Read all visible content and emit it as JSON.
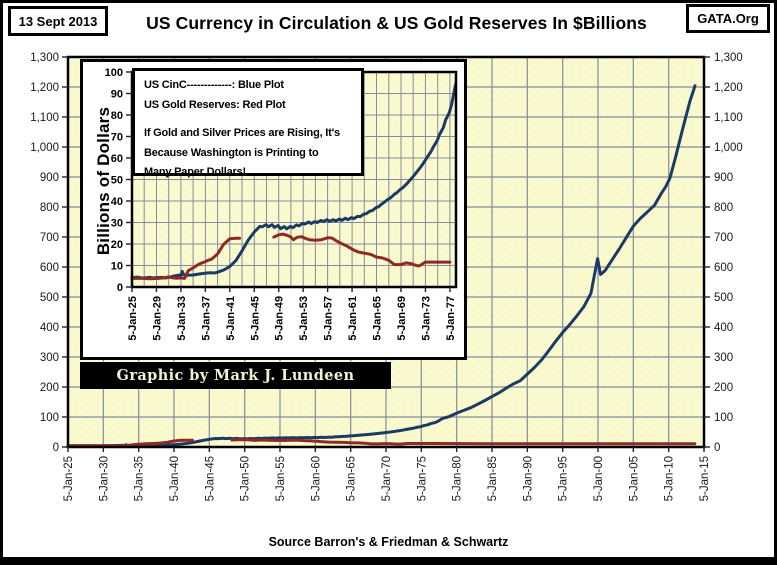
{
  "header": {
    "date": "13 Sept 2013",
    "brand": "GATA.Org",
    "title": "US Currency in Circulation & US Gold Reserves In $Billions"
  },
  "credit": {
    "text": "Graphic by Mark J. Lundeen"
  },
  "footer": {
    "source": "Source Barron's & Friedman & Schwartz"
  },
  "chart_data": {
    "type": "line",
    "title": "US Currency in Circulation & US Gold Reserves In $Billions",
    "xlabel": "",
    "ylabel": "Billions of Dollars",
    "legend": {
      "position": "inset-top-left",
      "lines": [
        "US CinC-------------: Blue Plot",
        "US Gold Reserves: Red Plot",
        "If Gold and Silver Prices are Rising, It's",
        "Because Washington is Printing to",
        "Many Paper Dollars!"
      ]
    },
    "colors": {
      "cinc": "#1B3A64",
      "gold": "#8E2A24",
      "plot_bg": "#FAF9CB",
      "grid": "#848C9E"
    },
    "series": [
      {
        "name": "US CinC",
        "color_key": "cinc",
        "points": [
          [
            1925,
            4.3
          ],
          [
            1925.9,
            4.6
          ],
          [
            1926.5,
            4.25
          ],
          [
            1927,
            4.2
          ],
          [
            1927.9,
            4.5
          ],
          [
            1928.5,
            4.2
          ],
          [
            1929,
            4.35
          ],
          [
            1929.9,
            4.45
          ],
          [
            1930.5,
            4.2
          ],
          [
            1931,
            4.5
          ],
          [
            1931.9,
            5.1
          ],
          [
            1932.5,
            5.45
          ],
          [
            1933.05,
            5.6
          ],
          [
            1933.2,
            7.3
          ],
          [
            1933.45,
            5.7
          ],
          [
            1934,
            5.45
          ],
          [
            1935,
            5.6
          ],
          [
            1936,
            6.05
          ],
          [
            1937,
            6.45
          ],
          [
            1937.9,
            6.6
          ],
          [
            1938.5,
            6.5
          ],
          [
            1939,
            6.9
          ],
          [
            1940,
            7.9
          ],
          [
            1941,
            9.6
          ],
          [
            1942,
            12.3
          ],
          [
            1943,
            16.8
          ],
          [
            1944,
            21.8
          ],
          [
            1945,
            25.6
          ],
          [
            1945.9,
            28.2
          ],
          [
            1946.3,
            28.0
          ],
          [
            1946.92,
            29.0
          ],
          [
            1947.3,
            28.0
          ],
          [
            1947.92,
            29.0
          ],
          [
            1948.3,
            27.7
          ],
          [
            1948.92,
            28.6
          ],
          [
            1949.3,
            27.1
          ],
          [
            1949.92,
            28.1
          ],
          [
            1950.3,
            27.0
          ],
          [
            1950.92,
            28.2
          ],
          [
            1951.3,
            27.6
          ],
          [
            1951.92,
            28.9
          ],
          [
            1952.3,
            28.4
          ],
          [
            1952.92,
            29.6
          ],
          [
            1953.3,
            29.3
          ],
          [
            1953.92,
            30.3
          ],
          [
            1954.3,
            29.5
          ],
          [
            1954.92,
            30.4
          ],
          [
            1955.3,
            30.0
          ],
          [
            1955.92,
            31.0
          ],
          [
            1956.3,
            30.4
          ],
          [
            1956.92,
            31.3
          ],
          [
            1957.3,
            30.5
          ],
          [
            1957.92,
            31.3
          ],
          [
            1958.3,
            30.7
          ],
          [
            1958.92,
            31.6
          ],
          [
            1959.3,
            31.0
          ],
          [
            1959.92,
            32.0
          ],
          [
            1960.3,
            31.3
          ],
          [
            1960.92,
            32.3
          ],
          [
            1961.3,
            31.8
          ],
          [
            1961.92,
            32.9
          ],
          [
            1962.3,
            32.7
          ],
          [
            1962.92,
            33.9
          ],
          [
            1963.3,
            34.1
          ],
          [
            1963.92,
            35.3
          ],
          [
            1964.3,
            35.5
          ],
          [
            1964.92,
            36.9
          ],
          [
            1965.3,
            37.3
          ],
          [
            1965.92,
            38.8
          ],
          [
            1966.3,
            39.5
          ],
          [
            1966.92,
            40.9
          ],
          [
            1967.3,
            41.5
          ],
          [
            1967.92,
            43.1
          ],
          [
            1968.3,
            43.8
          ],
          [
            1968.92,
            45.5
          ],
          [
            1969.3,
            46.2
          ],
          [
            1969.92,
            47.9
          ],
          [
            1970.3,
            49.1
          ],
          [
            1970.92,
            51.1
          ],
          [
            1971.3,
            52.4
          ],
          [
            1971.92,
            54.7
          ],
          [
            1972.3,
            56.1
          ],
          [
            1972.92,
            58.7
          ],
          [
            1973.3,
            60.4
          ],
          [
            1973.92,
            63.1
          ],
          [
            1974.3,
            65.2
          ],
          [
            1974.92,
            68.1
          ],
          [
            1975.3,
            70.9
          ],
          [
            1975.92,
            74.1
          ],
          [
            1976.3,
            77.7
          ],
          [
            1976.92,
            81.2
          ],
          [
            1977.3,
            85.1
          ],
          [
            1977.95,
            94.5
          ],
          [
            1979,
            102
          ],
          [
            1980,
            113
          ],
          [
            1981,
            122
          ],
          [
            1982,
            131
          ],
          [
            1983,
            143
          ],
          [
            1984,
            155
          ],
          [
            1985,
            168
          ],
          [
            1986,
            181
          ],
          [
            1987,
            196
          ],
          [
            1988,
            210
          ],
          [
            1989,
            221
          ],
          [
            1990,
            243
          ],
          [
            1991,
            265
          ],
          [
            1992,
            290
          ],
          [
            1993,
            320
          ],
          [
            1994,
            352
          ],
          [
            1995,
            382
          ],
          [
            1996,
            408
          ],
          [
            1997,
            437
          ],
          [
            1998,
            468
          ],
          [
            1999,
            512
          ],
          [
            1999.95,
            628
          ],
          [
            2000.35,
            575
          ],
          [
            2001,
            588
          ],
          [
            2002,
            624
          ],
          [
            2003,
            660
          ],
          [
            2004,
            698
          ],
          [
            2005,
            736
          ],
          [
            2006,
            762
          ],
          [
            2007,
            784
          ],
          [
            2008,
            806
          ],
          [
            2008.9,
            843
          ],
          [
            2009.6,
            868
          ],
          [
            2010.2,
            898
          ],
          [
            2011,
            968
          ],
          [
            2012,
            1062
          ],
          [
            2013,
            1152
          ],
          [
            2013.72,
            1204
          ]
        ]
      },
      {
        "name": "US Gold Reserves",
        "color_key": "gold",
        "segments": [
          [
            [
              1925,
              4.0
            ],
            [
              1926,
              4.1
            ],
            [
              1927,
              3.95
            ],
            [
              1928,
              3.85
            ],
            [
              1929,
              3.95
            ],
            [
              1930,
              4.2
            ],
            [
              1931,
              4.7
            ],
            [
              1931.7,
              4.25
            ],
            [
              1932.3,
              4.05
            ],
            [
              1933,
              4.25
            ],
            [
              1933.6,
              4.0
            ],
            [
              1934.2,
              7.6
            ],
            [
              1935,
              8.9
            ],
            [
              1936,
              10.7
            ],
            [
              1937,
              11.8
            ],
            [
              1937.6,
              12.6
            ],
            [
              1938,
              12.9
            ],
            [
              1939,
              15.4
            ],
            [
              1940,
              19.9
            ],
            [
              1941,
              22.4
            ],
            [
              1942,
              22.7
            ],
            [
              1942.6,
              22.7
            ]
          ],
          [
            [
              1948.2,
              23.2
            ],
            [
              1949,
              24.3
            ],
            [
              1949.6,
              24.6
            ],
            [
              1950.2,
              24.2
            ],
            [
              1950.9,
              23.4
            ],
            [
              1951.4,
              22.0
            ],
            [
              1952,
              23.1
            ],
            [
              1952.7,
              23.4
            ],
            [
              1953.3,
              22.7
            ],
            [
              1954,
              22.0
            ],
            [
              1955,
              21.7
            ],
            [
              1956,
              22.0
            ],
            [
              1957,
              22.9
            ],
            [
              1957.7,
              22.8
            ],
            [
              1958.4,
              21.5
            ],
            [
              1959.3,
              20.2
            ],
            [
              1960.2,
              19.0
            ],
            [
              1961,
              17.6
            ],
            [
              1962,
              16.3
            ],
            [
              1963,
              15.7
            ],
            [
              1964,
              15.2
            ],
            [
              1965,
              13.9
            ],
            [
              1966,
              13.5
            ],
            [
              1967,
              12.4
            ],
            [
              1967.9,
              10.4
            ],
            [
              1969,
              10.4
            ],
            [
              1969.8,
              11.2
            ],
            [
              1970.6,
              10.9
            ],
            [
              1971.4,
              10.1
            ],
            [
              1971.9,
              9.7
            ],
            [
              1972.4,
              10.5
            ],
            [
              1973,
              11.6
            ],
            [
              1975,
              11.6
            ],
            [
              1977,
              11.6
            ],
            [
              1980,
              11.2
            ],
            [
              1985,
              11.1
            ],
            [
              1990,
              11.05
            ],
            [
              1995,
              11.05
            ],
            [
              2000,
              11.04
            ],
            [
              2005,
              11.04
            ],
            [
              2010,
              11.04
            ],
            [
              2013.7,
              11.04
            ]
          ]
        ]
      }
    ],
    "main_view": {
      "xlim": [
        1925,
        2015
      ],
      "ylim": [
        0,
        1300
      ],
      "x_grid_step": 5,
      "y_grid_step": 100,
      "x_tick_years": [
        1925,
        1930,
        1935,
        1940,
        1945,
        1950,
        1955,
        1960,
        1965,
        1970,
        1975,
        1980,
        1985,
        1990,
        1995,
        2000,
        2005,
        2010,
        2015
      ],
      "x_tick_labels": [
        "5-Jan-25",
        "5-Jan-30",
        "5-Jan-35",
        "5-Jan-40",
        "5-Jan-45",
        "5-Jan-50",
        "5-Jan-55",
        "5-Jan-60",
        "5-Jan-65",
        "5-Jan-70",
        "5-Jan-75",
        "5-Jan-80",
        "5-Jan-85",
        "5-Jan-90",
        "5-Jan-95",
        "5-Jan-00",
        "5-Jan-05",
        "5-Jan-10",
        "5-Jan-15"
      ],
      "y_ticks": [
        0,
        100,
        200,
        300,
        400,
        500,
        600,
        700,
        800,
        900,
        1000,
        1100,
        1200,
        1300
      ],
      "y_tick_labels": [
        "0",
        "100",
        "200",
        "300",
        "400",
        "500",
        "600",
        "700",
        "800",
        "900",
        "1,000",
        "1,100",
        "1,200",
        "1,300"
      ]
    },
    "inset_view": {
      "xlim": [
        1925,
        1978
      ],
      "ylim": [
        0,
        100
      ],
      "x_grid_step": 2,
      "y_grid_step": 10,
      "x_tick_years": [
        1925,
        1929,
        1933,
        1937,
        1941,
        1945,
        1949,
        1953,
        1957,
        1961,
        1965,
        1969,
        1973,
        1977
      ],
      "x_tick_labels": [
        "5-Jan-25",
        "5-Jan-29",
        "5-Jan-33",
        "5-Jan-37",
        "5-Jan-41",
        "5-Jan-45",
        "5-Jan-49",
        "5-Jan-53",
        "5-Jan-57",
        "5-Jan-61",
        "5-Jan-65",
        "5-Jan-69",
        "5-Jan-73",
        "5-Jan-77"
      ],
      "y_ticks": [
        0,
        10,
        20,
        30,
        40,
        50,
        60,
        70,
        80,
        90,
        100
      ],
      "y_tick_labels": [
        "0",
        "10",
        "20",
        "30",
        "40",
        "50",
        "60",
        "70",
        "80",
        "90",
        "100"
      ]
    }
  }
}
